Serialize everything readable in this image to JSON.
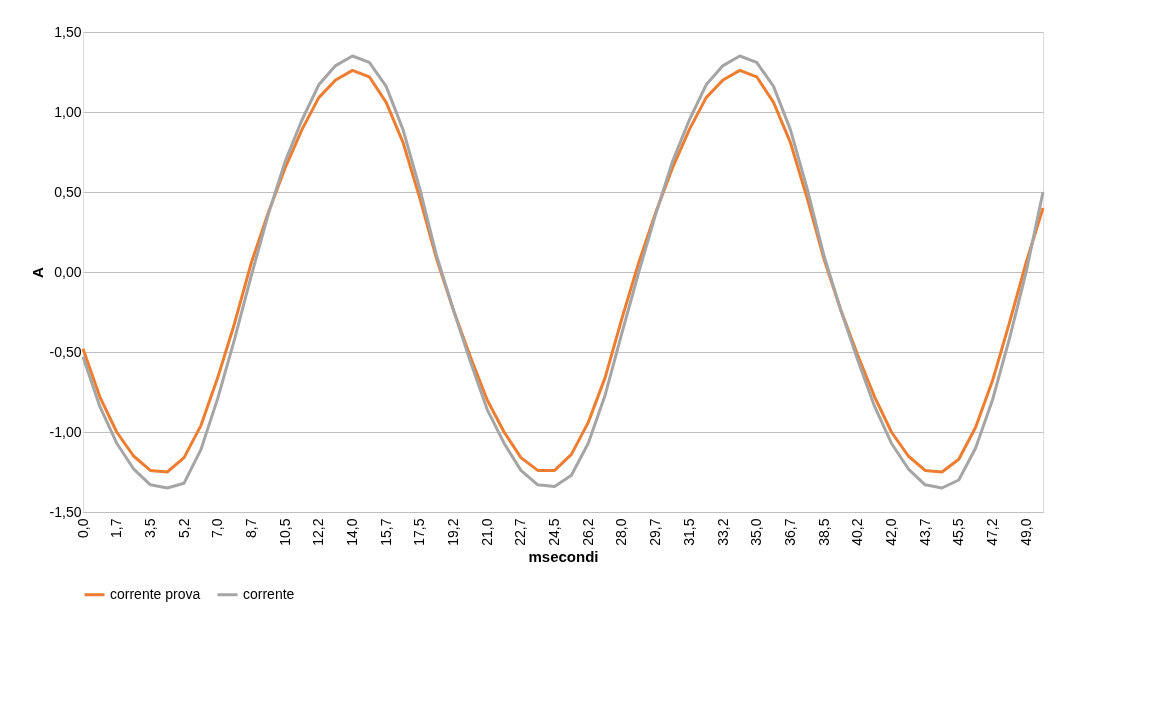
{
  "chart_data": {
    "type": "line",
    "xlabel": "msecondi",
    "ylabel": "A",
    "categories": [
      "0,0",
      null,
      "1,7",
      null,
      "3,5",
      null,
      "5,2",
      null,
      "7,0",
      null,
      "8,7",
      null,
      "10,5",
      null,
      "12,2",
      null,
      "14,0",
      null,
      "15,7",
      null,
      "17,5",
      null,
      "19,2",
      null,
      "21,0",
      null,
      "22,7",
      null,
      "24,5",
      null,
      "26,2",
      null,
      "28,0",
      null,
      "29,7",
      null,
      "31,5",
      null,
      "33,2",
      null,
      "35,0",
      null,
      "36,7",
      null,
      "38,5",
      null,
      "40,2",
      null,
      "42,0",
      null,
      "43,7",
      null,
      "45,5",
      null,
      "47,2",
      null,
      "49,0",
      null
    ],
    "series": [
      {
        "name": "corrente prova",
        "color": "#ed7d31",
        "values": [
          -0.48,
          -0.78,
          -1.0,
          -1.15,
          -1.24,
          -1.25,
          -1.16,
          -0.96,
          -0.66,
          -0.32,
          0.06,
          0.37,
          0.65,
          0.89,
          1.09,
          1.2,
          1.26,
          1.22,
          1.06,
          0.81,
          0.46,
          0.08,
          -0.24,
          -0.53,
          -0.8,
          -1.0,
          -1.16,
          -1.24,
          -1.24,
          -1.14,
          -0.94,
          -0.66,
          -0.29,
          0.06,
          0.37,
          0.65,
          0.89,
          1.09,
          1.2,
          1.26,
          1.22,
          1.06,
          0.81,
          0.46,
          0.08,
          -0.24,
          -0.52,
          -0.78,
          -1.0,
          -1.15,
          -1.24,
          -1.25,
          -1.17,
          -0.97,
          -0.68,
          -0.32,
          0.06,
          0.4
        ]
      },
      {
        "name": "corrente",
        "color": "#a5a5a5",
        "values": [
          -0.53,
          -0.84,
          -1.07,
          -1.23,
          -1.33,
          -1.35,
          -1.32,
          -1.11,
          -0.79,
          -0.42,
          -0.02,
          0.36,
          0.69,
          0.95,
          1.17,
          1.29,
          1.35,
          1.31,
          1.16,
          0.89,
          0.52,
          0.1,
          -0.24,
          -0.56,
          -0.86,
          -1.07,
          -1.24,
          -1.33,
          -1.34,
          -1.27,
          -1.07,
          -0.77,
          -0.38,
          0.0,
          0.36,
          0.69,
          0.95,
          1.17,
          1.29,
          1.35,
          1.31,
          1.16,
          0.89,
          0.52,
          0.1,
          -0.24,
          -0.55,
          -0.84,
          -1.07,
          -1.23,
          -1.33,
          -1.35,
          -1.3,
          -1.1,
          -0.8,
          -0.42,
          0.0,
          0.5
        ]
      }
    ],
    "ylim": [
      -1.5,
      1.5
    ],
    "yticks": [
      {
        "value": -1.5,
        "label": "-1,50"
      },
      {
        "value": -1.0,
        "label": "-1,00"
      },
      {
        "value": -0.5,
        "label": "-0,50"
      },
      {
        "value": 0,
        "label": "0,00"
      },
      {
        "value": 0.5,
        "label": "0,50"
      },
      {
        "value": 1.0,
        "label": "1,00"
      },
      {
        "value": 1.5,
        "label": "1,50"
      }
    ],
    "grid": "y",
    "legend": "bottom",
    "marker": "none",
    "line_style": "solid"
  }
}
